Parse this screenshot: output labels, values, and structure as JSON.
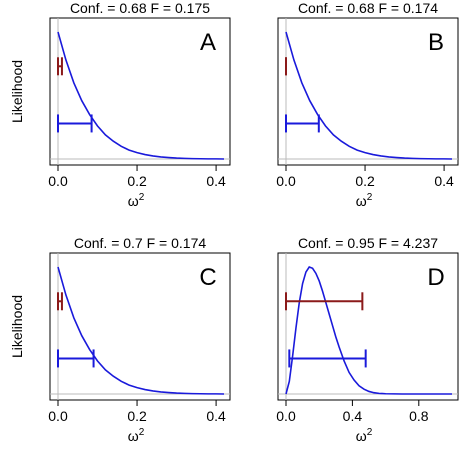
{
  "chart_data": [
    {
      "type": "line",
      "title": "Conf. = 0.68   F = 0.175",
      "panel_letter": "A",
      "ylabel": "Likelihood",
      "xlabel": "ω",
      "xlabel_sup": "2",
      "xlim": [
        0,
        0.42
      ],
      "xticks": [
        0.0,
        0.2,
        0.4
      ],
      "xtick_labels": [
        "0.0",
        "0.2",
        "0.4"
      ],
      "grid": false,
      "colors": {
        "curve": "#1a1adb",
        "interval_conf": "#8b1a1a",
        "interval_blue": "#1a1adb",
        "baseline": "#bbbbbb"
      },
      "series": [
        {
          "x": [
            0,
            0.02,
            0.04,
            0.06,
            0.08,
            0.1,
            0.12,
            0.14,
            0.16,
            0.18,
            0.2,
            0.22,
            0.24,
            0.26,
            0.28,
            0.3,
            0.32,
            0.34,
            0.36,
            0.38,
            0.4,
            0.42
          ],
          "y": [
            1.0,
            0.78,
            0.6,
            0.46,
            0.35,
            0.26,
            0.19,
            0.14,
            0.1,
            0.07,
            0.05,
            0.035,
            0.024,
            0.016,
            0.011,
            0.007,
            0.005,
            0.003,
            0.002,
            0.001,
            0.001,
            0.0
          ]
        }
      ],
      "intervals": [
        {
          "level": 0.73,
          "lo": 0.0,
          "hi": 0.01
        },
        {
          "level": 0.28,
          "lo": 0.0,
          "hi": 0.085
        }
      ]
    },
    {
      "type": "line",
      "title": "Conf. = 0.68   F = 0.174",
      "panel_letter": "B",
      "xlabel": "ω",
      "xlabel_sup": "2",
      "xlim": [
        0,
        0.42
      ],
      "xticks": [
        0.0,
        0.2,
        0.4
      ],
      "xtick_labels": [
        "0.0",
        "0.2",
        "0.4"
      ],
      "grid": false,
      "colors": {
        "curve": "#1a1adb",
        "interval_conf": "#8b1a1a",
        "interval_blue": "#1a1adb",
        "baseline": "#bbbbbb"
      },
      "series": [
        {
          "x": [
            0,
            0.02,
            0.04,
            0.06,
            0.08,
            0.1,
            0.12,
            0.14,
            0.16,
            0.18,
            0.2,
            0.22,
            0.24,
            0.26,
            0.28,
            0.3,
            0.32,
            0.34,
            0.36,
            0.38,
            0.4,
            0.42
          ],
          "y": [
            1.0,
            0.78,
            0.6,
            0.46,
            0.35,
            0.26,
            0.19,
            0.14,
            0.1,
            0.07,
            0.05,
            0.035,
            0.024,
            0.016,
            0.011,
            0.007,
            0.005,
            0.003,
            0.002,
            0.001,
            0.001,
            0.0
          ]
        }
      ],
      "intervals": [
        {
          "level": 0.73,
          "lo": 0.0,
          "hi": 0.0
        },
        {
          "level": 0.28,
          "lo": 0.0,
          "hi": 0.083
        }
      ]
    },
    {
      "type": "line",
      "title": "Conf. = 0.7     F = 0.174",
      "panel_letter": "C",
      "ylabel": "Likelihood",
      "xlabel": "ω",
      "xlabel_sup": "2",
      "xlim": [
        0,
        0.42
      ],
      "xticks": [
        0.0,
        0.2,
        0.4
      ],
      "xtick_labels": [
        "0.0",
        "0.2",
        "0.4"
      ],
      "grid": false,
      "colors": {
        "curve": "#1a1adb",
        "interval_conf": "#8b1a1a",
        "interval_blue": "#1a1adb",
        "baseline": "#bbbbbb"
      },
      "series": [
        {
          "x": [
            0,
            0.02,
            0.04,
            0.06,
            0.08,
            0.1,
            0.12,
            0.14,
            0.16,
            0.18,
            0.2,
            0.22,
            0.24,
            0.26,
            0.28,
            0.3,
            0.32,
            0.34,
            0.36,
            0.38,
            0.4,
            0.42
          ],
          "y": [
            1.0,
            0.78,
            0.6,
            0.46,
            0.35,
            0.26,
            0.19,
            0.14,
            0.1,
            0.07,
            0.05,
            0.035,
            0.024,
            0.016,
            0.011,
            0.007,
            0.005,
            0.003,
            0.002,
            0.001,
            0.001,
            0.0
          ]
        }
      ],
      "intervals": [
        {
          "level": 0.73,
          "lo": 0.0,
          "hi": 0.01
        },
        {
          "level": 0.28,
          "lo": 0.0,
          "hi": 0.09
        }
      ]
    },
    {
      "type": "line",
      "title": "Conf. = 0.95   F = 4.237",
      "panel_letter": "D",
      "xlabel": "ω",
      "xlabel_sup": "2",
      "xlim": [
        0,
        1.0
      ],
      "xticks": [
        0.0,
        0.4,
        0.8
      ],
      "xtick_labels": [
        "0.0",
        "0.4",
        "0.8"
      ],
      "grid": false,
      "colors": {
        "curve": "#1a1adb",
        "interval_conf": "#8b1a1a",
        "interval_blue": "#1a1adb",
        "baseline": "#bbbbbb"
      },
      "series": [
        {
          "x": [
            0,
            0.02,
            0.04,
            0.06,
            0.08,
            0.1,
            0.12,
            0.14,
            0.16,
            0.18,
            0.2,
            0.22,
            0.24,
            0.26,
            0.28,
            0.3,
            0.32,
            0.35,
            0.38,
            0.41,
            0.44,
            0.47,
            0.5,
            0.53,
            0.56,
            0.6,
            0.65,
            0.7,
            0.8,
            0.9,
            1.0
          ],
          "y": [
            0.0,
            0.1,
            0.3,
            0.52,
            0.72,
            0.87,
            0.96,
            1.0,
            0.99,
            0.95,
            0.89,
            0.81,
            0.72,
            0.63,
            0.54,
            0.45,
            0.37,
            0.26,
            0.17,
            0.11,
            0.065,
            0.038,
            0.02,
            0.01,
            0.005,
            0.002,
            0.001,
            0.0,
            0.0,
            0.0,
            0.0
          ]
        }
      ],
      "intervals": [
        {
          "level": 0.73,
          "lo": 0.0,
          "hi": 0.46
        },
        {
          "level": 0.28,
          "lo": 0.02,
          "hi": 0.48
        }
      ]
    }
  ]
}
